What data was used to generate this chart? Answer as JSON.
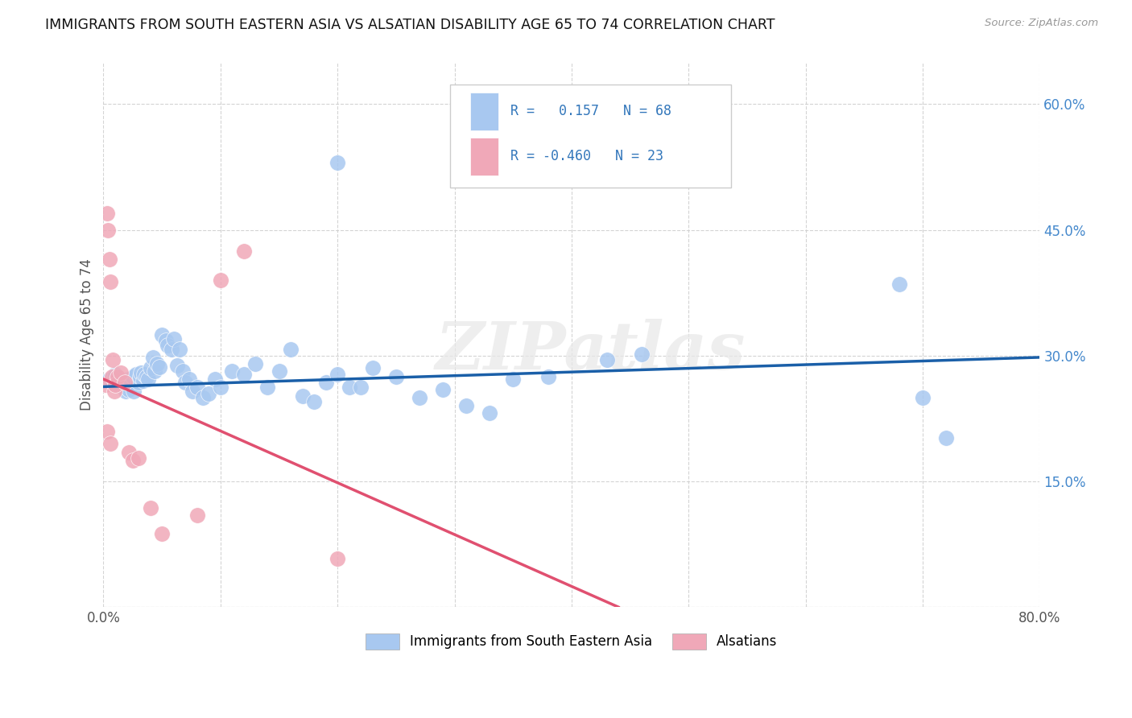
{
  "title": "IMMIGRANTS FROM SOUTH EASTERN ASIA VS ALSATIAN DISABILITY AGE 65 TO 74 CORRELATION CHART",
  "source": "Source: ZipAtlas.com",
  "ylabel": "Disability Age 65 to 74",
  "xlim": [
    0.0,
    0.8
  ],
  "ylim": [
    0.0,
    0.65
  ],
  "xticks": [
    0.0,
    0.1,
    0.2,
    0.3,
    0.4,
    0.5,
    0.6,
    0.7,
    0.8
  ],
  "xtick_labels": [
    "0.0%",
    "",
    "",
    "",
    "",
    "",
    "",
    "",
    "80.0%"
  ],
  "yticks": [
    0.0,
    0.15,
    0.3,
    0.45,
    0.6
  ],
  "ytick_labels_right": [
    "",
    "15.0%",
    "30.0%",
    "45.0%",
    "60.0%"
  ],
  "blue_color": "#a8c8f0",
  "blue_line_color": "#1a5fa8",
  "pink_color": "#f0a8b8",
  "pink_line_color": "#e05070",
  "legend_label_blue": "Immigrants from South Eastern Asia",
  "legend_label_pink": "Alsatians",
  "watermark": "ZIPatlas",
  "blue_trend_x": [
    0.0,
    0.8
  ],
  "blue_trend_y": [
    0.263,
    0.298
  ],
  "pink_trend_x": [
    0.0,
    0.44
  ],
  "pink_trend_y": [
    0.272,
    0.0
  ],
  "blue_scatter_x": [
    0.005,
    0.01,
    0.012,
    0.015,
    0.016,
    0.018,
    0.019,
    0.02,
    0.021,
    0.022,
    0.024,
    0.025,
    0.026,
    0.028,
    0.03,
    0.031,
    0.032,
    0.034,
    0.035,
    0.037,
    0.038,
    0.04,
    0.042,
    0.044,
    0.046,
    0.048,
    0.05,
    0.053,
    0.055,
    0.058,
    0.06,
    0.063,
    0.065,
    0.068,
    0.07,
    0.073,
    0.076,
    0.08,
    0.085,
    0.09,
    0.095,
    0.1,
    0.11,
    0.12,
    0.13,
    0.14,
    0.15,
    0.16,
    0.17,
    0.18,
    0.19,
    0.2,
    0.21,
    0.22,
    0.23,
    0.25,
    0.27,
    0.29,
    0.31,
    0.33,
    0.2,
    0.35,
    0.38,
    0.43,
    0.46,
    0.68,
    0.7,
    0.72
  ],
  "blue_scatter_y": [
    0.272,
    0.278,
    0.265,
    0.27,
    0.268,
    0.262,
    0.258,
    0.264,
    0.272,
    0.26,
    0.268,
    0.275,
    0.258,
    0.278,
    0.268,
    0.275,
    0.28,
    0.27,
    0.278,
    0.275,
    0.272,
    0.285,
    0.298,
    0.282,
    0.29,
    0.286,
    0.325,
    0.318,
    0.312,
    0.308,
    0.32,
    0.288,
    0.308,
    0.282,
    0.268,
    0.272,
    0.258,
    0.262,
    0.25,
    0.255,
    0.272,
    0.262,
    0.282,
    0.278,
    0.29,
    0.262,
    0.282,
    0.308,
    0.252,
    0.245,
    0.268,
    0.278,
    0.262,
    0.262,
    0.285,
    0.275,
    0.25,
    0.26,
    0.24,
    0.232,
    0.53,
    0.272,
    0.275,
    0.295,
    0.302,
    0.385,
    0.25,
    0.202
  ],
  "pink_scatter_x": [
    0.002,
    0.003,
    0.004,
    0.005,
    0.006,
    0.007,
    0.008,
    0.009,
    0.01,
    0.012,
    0.015,
    0.018,
    0.022,
    0.025,
    0.03,
    0.04,
    0.05,
    0.08,
    0.1,
    0.12,
    0.2,
    0.003,
    0.006
  ],
  "pink_scatter_y": [
    0.265,
    0.47,
    0.45,
    0.415,
    0.388,
    0.275,
    0.295,
    0.258,
    0.265,
    0.275,
    0.28,
    0.268,
    0.185,
    0.175,
    0.178,
    0.118,
    0.088,
    0.11,
    0.39,
    0.425,
    0.058,
    0.21,
    0.195
  ]
}
